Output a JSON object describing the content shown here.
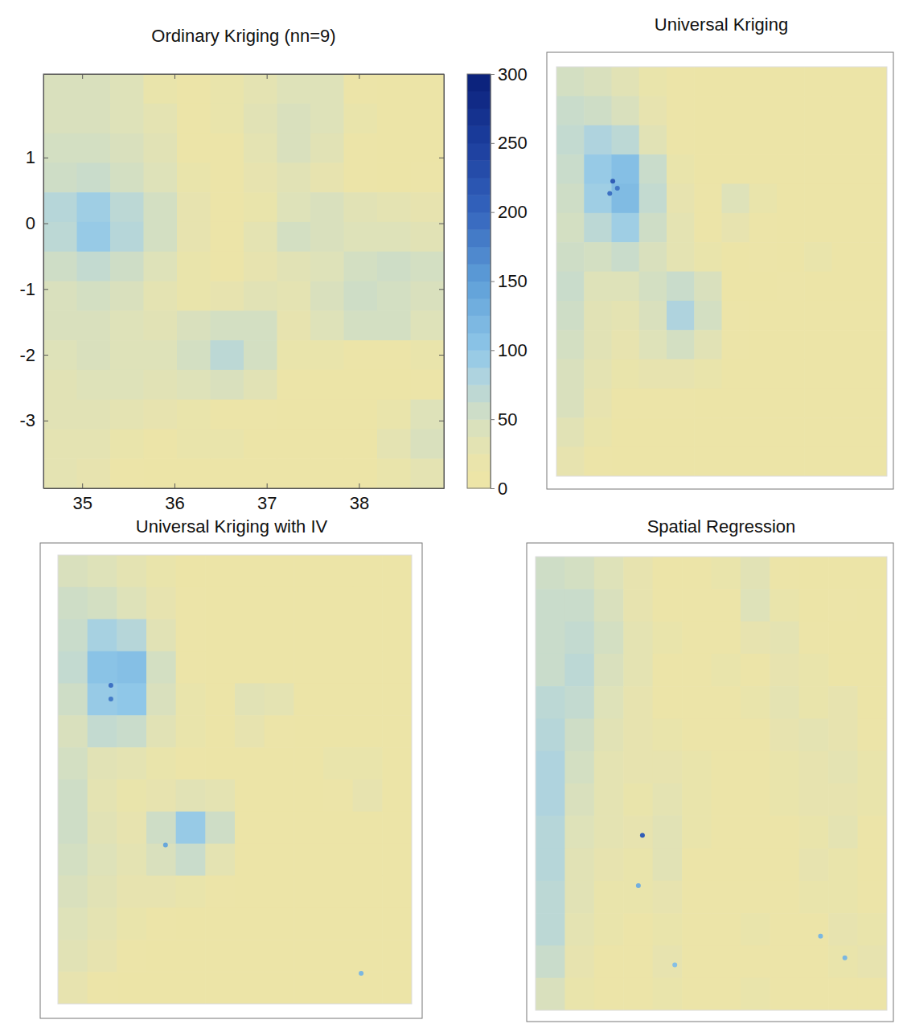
{
  "chart_data": [
    {
      "type": "heatmap",
      "title": "Ordinary Kriging (nn=9)",
      "xlim": [
        34.58,
        38.92
      ],
      "ylim": [
        -4.03,
        2.27
      ],
      "xticks": [
        35,
        36,
        37,
        38
      ],
      "yticks": [
        1,
        0,
        -1,
        -2,
        -3
      ],
      "cells": [
        [
          45,
          45,
          40,
          20,
          15,
          20,
          30,
          40,
          40,
          15,
          10,
          10
        ],
        [
          45,
          45,
          40,
          30,
          15,
          20,
          35,
          45,
          40,
          20,
          10,
          10
        ],
        [
          50,
          50,
          45,
          35,
          15,
          15,
          30,
          45,
          35,
          15,
          10,
          10
        ],
        [
          55,
          60,
          50,
          40,
          20,
          15,
          25,
          35,
          25,
          15,
          10,
          15
        ],
        [
          75,
          90,
          70,
          50,
          25,
          15,
          20,
          40,
          45,
          35,
          30,
          25
        ],
        [
          70,
          95,
          75,
          50,
          25,
          15,
          30,
          50,
          45,
          40,
          40,
          35
        ],
        [
          55,
          65,
          55,
          40,
          20,
          15,
          25,
          35,
          40,
          50,
          55,
          50
        ],
        [
          45,
          50,
          45,
          30,
          20,
          25,
          35,
          30,
          45,
          55,
          50,
          45
        ],
        [
          45,
          45,
          40,
          35,
          45,
          50,
          50,
          25,
          40,
          50,
          50,
          40
        ],
        [
          40,
          45,
          40,
          40,
          50,
          70,
          50,
          20,
          20,
          15,
          15,
          20
        ],
        [
          35,
          40,
          40,
          35,
          40,
          45,
          35,
          15,
          10,
          10,
          10,
          15
        ],
        [
          35,
          35,
          30,
          25,
          20,
          15,
          15,
          10,
          10,
          10,
          20,
          40
        ],
        [
          30,
          30,
          20,
          15,
          20,
          20,
          10,
          10,
          10,
          10,
          30,
          45
        ],
        [
          30,
          25,
          15,
          10,
          10,
          10,
          10,
          10,
          10,
          10,
          20,
          30
        ]
      ],
      "colorbar": {
        "range": [
          0,
          300
        ],
        "ticks": [
          0,
          50,
          100,
          150,
          200,
          250,
          300
        ]
      }
    },
    {
      "type": "heatmap",
      "title": "Universal Kriging",
      "xlim": [
        34.58,
        38.92
      ],
      "ylim": [
        -4.03,
        2.27
      ],
      "tick_labels": false,
      "cells": [
        [
          50,
          45,
          35,
          20,
          15,
          10,
          10,
          10,
          10,
          10,
          10,
          10
        ],
        [
          60,
          55,
          45,
          25,
          15,
          10,
          10,
          10,
          10,
          10,
          10,
          10
        ],
        [
          65,
          80,
          70,
          35,
          15,
          10,
          10,
          10,
          10,
          10,
          10,
          10
        ],
        [
          60,
          95,
          110,
          60,
          20,
          10,
          10,
          10,
          10,
          10,
          10,
          10
        ],
        [
          55,
          90,
          115,
          65,
          25,
          15,
          40,
          20,
          10,
          10,
          10,
          10
        ],
        [
          50,
          70,
          90,
          55,
          30,
          15,
          25,
          15,
          10,
          10,
          10,
          10
        ],
        [
          55,
          50,
          60,
          45,
          30,
          20,
          10,
          15,
          10,
          20,
          10,
          10
        ],
        [
          60,
          40,
          40,
          50,
          60,
          45,
          10,
          10,
          15,
          10,
          10,
          10
        ],
        [
          55,
          35,
          30,
          45,
          80,
          50,
          15,
          10,
          10,
          10,
          10,
          10
        ],
        [
          50,
          35,
          25,
          40,
          50,
          35,
          15,
          10,
          10,
          10,
          10,
          10
        ],
        [
          45,
          30,
          20,
          25,
          25,
          20,
          10,
          10,
          10,
          10,
          10,
          10
        ],
        [
          45,
          25,
          15,
          15,
          15,
          10,
          10,
          10,
          10,
          10,
          10,
          10
        ],
        [
          35,
          20,
          10,
          10,
          10,
          10,
          10,
          10,
          10,
          10,
          10,
          10
        ],
        [
          25,
          15,
          10,
          10,
          10,
          10,
          10,
          10,
          10,
          10,
          10,
          10
        ]
      ],
      "points": [
        {
          "x": 35.32,
          "y": 0.51,
          "value": 210
        },
        {
          "x": 35.28,
          "y": 0.32,
          "value": 190
        },
        {
          "x": 35.38,
          "y": 0.4,
          "value": 185
        }
      ]
    },
    {
      "type": "heatmap",
      "title": "Universal Kriging with IV",
      "xlim": [
        34.58,
        38.92
      ],
      "ylim": [
        -4.03,
        2.27
      ],
      "tick_labels": false,
      "cells": [
        [
          45,
          40,
          30,
          20,
          10,
          10,
          10,
          10,
          10,
          10,
          10,
          10
        ],
        [
          55,
          50,
          40,
          25,
          15,
          10,
          10,
          10,
          10,
          10,
          10,
          10
        ],
        [
          60,
          85,
          75,
          35,
          15,
          10,
          10,
          10,
          10,
          10,
          10,
          10
        ],
        [
          65,
          105,
          110,
          50,
          15,
          10,
          10,
          10,
          10,
          10,
          10,
          10
        ],
        [
          55,
          95,
          100,
          45,
          20,
          10,
          35,
          30,
          10,
          10,
          10,
          10
        ],
        [
          45,
          65,
          60,
          35,
          20,
          10,
          25,
          15,
          10,
          10,
          10,
          10
        ],
        [
          50,
          35,
          30,
          20,
          15,
          10,
          10,
          10,
          10,
          20,
          20,
          10
        ],
        [
          55,
          30,
          20,
          25,
          35,
          30,
          10,
          10,
          10,
          15,
          25,
          10
        ],
        [
          55,
          35,
          25,
          55,
          95,
          55,
          10,
          10,
          10,
          10,
          10,
          10
        ],
        [
          50,
          40,
          30,
          45,
          60,
          30,
          10,
          10,
          10,
          10,
          10,
          10
        ],
        [
          45,
          35,
          25,
          25,
          20,
          15,
          10,
          10,
          10,
          10,
          10,
          10
        ],
        [
          40,
          30,
          20,
          15,
          10,
          10,
          10,
          10,
          10,
          10,
          10,
          10
        ],
        [
          35,
          25,
          15,
          10,
          10,
          10,
          10,
          10,
          10,
          10,
          10,
          10
        ],
        [
          25,
          15,
          10,
          10,
          10,
          10,
          10,
          10,
          10,
          10,
          10,
          10
        ]
      ],
      "points": [
        {
          "x": 35.23,
          "y": 0.44,
          "value": 190
        },
        {
          "x": 35.23,
          "y": 0.25,
          "value": 180
        },
        {
          "x": 35.9,
          "y": -1.8,
          "value": 140
        },
        {
          "x": 38.3,
          "y": -3.6,
          "value": 120
        }
      ]
    },
    {
      "type": "heatmap",
      "title": "Spatial Regression",
      "xlim": [
        34.58,
        38.92
      ],
      "ylim": [
        -4.03,
        2.27
      ],
      "tick_labels": false,
      "cells": [
        [
          55,
          50,
          40,
          25,
          15,
          15,
          20,
          35,
          15,
          10,
          10,
          10
        ],
        [
          60,
          60,
          45,
          25,
          15,
          15,
          15,
          40,
          20,
          10,
          15,
          10
        ],
        [
          60,
          65,
          50,
          30,
          20,
          15,
          15,
          25,
          30,
          15,
          10,
          10
        ],
        [
          60,
          70,
          45,
          30,
          15,
          15,
          20,
          15,
          25,
          20,
          10,
          10
        ],
        [
          70,
          65,
          40,
          25,
          15,
          15,
          15,
          20,
          30,
          20,
          25,
          10
        ],
        [
          75,
          55,
          35,
          25,
          20,
          15,
          15,
          15,
          25,
          30,
          25,
          15
        ],
        [
          80,
          50,
          30,
          25,
          25,
          20,
          15,
          15,
          20,
          25,
          30,
          20
        ],
        [
          80,
          45,
          30,
          20,
          30,
          20,
          15,
          15,
          20,
          25,
          25,
          20
        ],
        [
          75,
          40,
          30,
          25,
          35,
          20,
          15,
          15,
          15,
          20,
          30,
          15
        ],
        [
          75,
          35,
          25,
          20,
          35,
          15,
          15,
          15,
          15,
          25,
          20,
          15
        ],
        [
          70,
          35,
          20,
          20,
          25,
          15,
          15,
          15,
          15,
          20,
          20,
          15
        ],
        [
          70,
          30,
          20,
          15,
          20,
          15,
          15,
          20,
          15,
          15,
          25,
          20
        ],
        [
          60,
          25,
          15,
          15,
          25,
          15,
          15,
          15,
          15,
          15,
          20,
          25
        ],
        [
          45,
          20,
          15,
          15,
          20,
          15,
          15,
          20,
          15,
          15,
          15,
          15
        ]
      ],
      "points": [
        {
          "x": 35.9,
          "y": -1.6,
          "value": 210
        },
        {
          "x": 35.85,
          "y": -2.3,
          "value": 130
        },
        {
          "x": 38.1,
          "y": -3.0,
          "value": 120
        },
        {
          "x": 38.4,
          "y": -3.3,
          "value": 120
        },
        {
          "x": 36.3,
          "y": -3.4,
          "value": 110
        }
      ]
    }
  ]
}
